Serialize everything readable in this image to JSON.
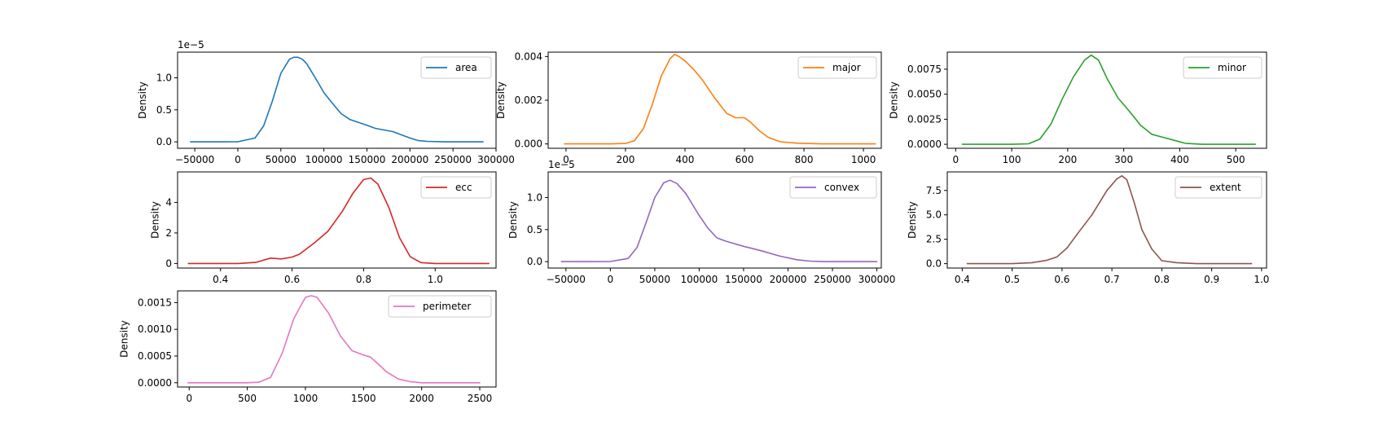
{
  "chart_data": [
    {
      "type": "line",
      "series": [
        {
          "name": "area",
          "color": "#1f77b4"
        }
      ],
      "ylabel": "Density",
      "offset_text": "1e−5",
      "xlim": [
        -70000,
        300000
      ],
      "ylim": [
        -0.1,
        1.4
      ],
      "xticks": [
        -50000,
        0,
        50000,
        100000,
        150000,
        200000,
        250000,
        300000
      ],
      "xtick_labels": [
        "−50000",
        "0",
        "50000",
        "100000",
        "150000",
        "200000",
        "250000",
        "300000"
      ],
      "yticks": [
        0,
        0.5,
        1.0
      ],
      "ytick_labels": [
        "0.0",
        "0.5",
        "1.0"
      ],
      "legend_position": "upper right",
      "x": [
        -55000,
        -20000,
        0,
        20000,
        30000,
        40000,
        50000,
        60000,
        65000,
        70000,
        75000,
        80000,
        90000,
        100000,
        110000,
        120000,
        130000,
        150000,
        160000,
        180000,
        190000,
        200000,
        210000,
        220000,
        240000,
        285000
      ],
      "y": [
        0,
        0,
        0.002,
        0.06,
        0.25,
        0.63,
        1.07,
        1.29,
        1.32,
        1.32,
        1.29,
        1.22,
        1.0,
        0.77,
        0.6,
        0.44,
        0.35,
        0.26,
        0.21,
        0.16,
        0.11,
        0.06,
        0.02,
        0.008,
        0,
        0
      ]
    },
    {
      "type": "line",
      "series": [
        {
          "name": "major",
          "color": "#ff7f0e"
        }
      ],
      "ylabel": "Density",
      "xlim": [
        -60,
        1060
      ],
      "ylim": [
        -0.0002,
        0.0042
      ],
      "xticks": [
        0,
        200,
        400,
        600,
        800,
        1000
      ],
      "xtick_labels": [
        "0",
        "200",
        "400",
        "600",
        "800",
        "1000"
      ],
      "yticks": [
        0,
        0.002,
        0.004
      ],
      "ytick_labels": [
        "0.000",
        "0.002",
        "0.004"
      ],
      "legend_position": "upper right",
      "x": [
        -5,
        150,
        200,
        230,
        260,
        290,
        320,
        350,
        365,
        380,
        400,
        430,
        460,
        500,
        540,
        570,
        600,
        620,
        650,
        680,
        720,
        780,
        860,
        1040
      ],
      "y": [
        0,
        0,
        2e-05,
        0.00015,
        0.0007,
        0.0018,
        0.0031,
        0.0039,
        0.0041,
        0.004,
        0.0038,
        0.0034,
        0.0029,
        0.0021,
        0.0014,
        0.0012,
        0.0012,
        0.001,
        0.0006,
        0.0003,
        0.0001,
        3e-05,
        0,
        0
      ]
    },
    {
      "type": "line",
      "series": [
        {
          "name": "minor",
          "color": "#2ca02c"
        }
      ],
      "ylabel": "Density",
      "xlim": [
        -15,
        555
      ],
      "ylim": [
        -0.0004,
        0.0092
      ],
      "xticks": [
        0,
        100,
        200,
        300,
        400,
        500
      ],
      "xtick_labels": [
        "0",
        "100",
        "200",
        "300",
        "400",
        "500"
      ],
      "yticks": [
        0,
        0.0025,
        0.005,
        0.0075
      ],
      "ytick_labels": [
        "0.0000",
        "0.0025",
        "0.0050",
        "0.0075"
      ],
      "legend_position": "upper right",
      "x": [
        12,
        100,
        130,
        150,
        170,
        190,
        210,
        230,
        242,
        255,
        270,
        290,
        310,
        330,
        350,
        370,
        390,
        410,
        440,
        535
      ],
      "y": [
        0,
        0,
        5e-05,
        0.0005,
        0.002,
        0.0045,
        0.0067,
        0.0084,
        0.0089,
        0.0084,
        0.0066,
        0.0046,
        0.0033,
        0.0019,
        0.001,
        0.0007,
        0.0004,
        0.0001,
        0,
        0
      ]
    },
    {
      "type": "line",
      "series": [
        {
          "name": "ecc",
          "color": "#d62728"
        }
      ],
      "ylabel": "Density",
      "xlim": [
        0.28,
        1.17
      ],
      "ylim": [
        -0.3,
        6.0
      ],
      "xticks": [
        0.4,
        0.6,
        0.8,
        1.0
      ],
      "xtick_labels": [
        "0.4",
        "0.6",
        "0.8",
        "1.0"
      ],
      "yticks": [
        0,
        2,
        4
      ],
      "ytick_labels": [
        "0",
        "2",
        "4"
      ],
      "legend_position": "upper right",
      "x": [
        0.31,
        0.45,
        0.5,
        0.54,
        0.57,
        0.6,
        0.62,
        0.66,
        0.7,
        0.74,
        0.77,
        0.8,
        0.82,
        0.84,
        0.87,
        0.9,
        0.93,
        0.96,
        1.0,
        1.15
      ],
      "y": [
        0,
        0,
        0.08,
        0.35,
        0.3,
        0.42,
        0.6,
        1.3,
        2.1,
        3.4,
        4.6,
        5.5,
        5.6,
        5.2,
        3.7,
        1.7,
        0.45,
        0.06,
        0,
        0
      ]
    },
    {
      "type": "line",
      "series": [
        {
          "name": "convex",
          "color": "#9467bd"
        }
      ],
      "ylabel": "Density",
      "offset_text": "1e−5",
      "xlim": [
        -70000,
        305000
      ],
      "ylim": [
        -0.1,
        1.4
      ],
      "xticks": [
        -50000,
        0,
        50000,
        100000,
        150000,
        200000,
        250000,
        300000
      ],
      "xtick_labels": [
        "−50000",
        "0",
        "50000",
        "100000",
        "150000",
        "200000",
        "250000",
        "300000"
      ],
      "yticks": [
        0,
        0.5,
        1.0
      ],
      "ytick_labels": [
        "0.0",
        "0.5",
        "1.0"
      ],
      "legend_position": "upper right",
      "x": [
        -55000,
        -20000,
        0,
        20000,
        30000,
        40000,
        50000,
        60000,
        67000,
        75000,
        85000,
        100000,
        110000,
        120000,
        130000,
        150000,
        170000,
        190000,
        210000,
        225000,
        240000,
        300000
      ],
      "y": [
        0,
        0,
        0.002,
        0.05,
        0.22,
        0.6,
        1.0,
        1.23,
        1.27,
        1.22,
        1.06,
        0.72,
        0.52,
        0.37,
        0.32,
        0.24,
        0.17,
        0.09,
        0.03,
        0.008,
        0,
        0
      ]
    },
    {
      "type": "line",
      "series": [
        {
          "name": "extent",
          "color": "#8c564b"
        }
      ],
      "ylabel": "Density",
      "xlim": [
        0.37,
        1.01
      ],
      "ylim": [
        -0.45,
        9.4
      ],
      "xticks": [
        0.4,
        0.5,
        0.6,
        0.7,
        0.8,
        0.9,
        1.0
      ],
      "xtick_labels": [
        "0.4",
        "0.5",
        "0.6",
        "0.7",
        "0.8",
        "0.9",
        "1.0"
      ],
      "yticks": [
        0,
        2.5,
        5.0,
        7.5
      ],
      "ytick_labels": [
        "0.0",
        "2.5",
        "5.0",
        "7.5"
      ],
      "legend_position": "upper right",
      "x": [
        0.41,
        0.5,
        0.54,
        0.57,
        0.59,
        0.61,
        0.63,
        0.66,
        0.69,
        0.71,
        0.72,
        0.73,
        0.745,
        0.76,
        0.78,
        0.8,
        0.83,
        0.87,
        0.98
      ],
      "y": [
        0,
        0,
        0.1,
        0.35,
        0.7,
        1.6,
        3.0,
        5.0,
        7.5,
        8.7,
        9.0,
        8.6,
        6.2,
        3.5,
        1.5,
        0.3,
        0.1,
        0,
        0
      ]
    },
    {
      "type": "line",
      "series": [
        {
          "name": "perimeter",
          "color": "#e377c2"
        }
      ],
      "ylabel": "Density",
      "xlim": [
        -100,
        2640
      ],
      "ylim": [
        -8e-05,
        0.00172
      ],
      "xticks": [
        0,
        500,
        1000,
        1500,
        2000,
        2500
      ],
      "xtick_labels": [
        "0",
        "500",
        "1000",
        "1500",
        "2000",
        "2500"
      ],
      "yticks": [
        0,
        0.0005,
        0.001,
        0.0015
      ],
      "ytick_labels": [
        "0.0000",
        "0.0005",
        "0.0010",
        "0.0015"
      ],
      "legend_position": "upper right",
      "x": [
        -10,
        500,
        600,
        700,
        800,
        900,
        1000,
        1050,
        1100,
        1200,
        1300,
        1400,
        1500,
        1560,
        1600,
        1700,
        1800,
        1900,
        2000,
        2500
      ],
      "y": [
        0,
        0,
        1e-05,
        0.0001,
        0.00055,
        0.0012,
        0.0016,
        0.00163,
        0.0016,
        0.0013,
        0.00088,
        0.0006,
        0.00052,
        0.00048,
        0.0004,
        0.0002,
        7e-05,
        2e-05,
        0,
        0
      ]
    }
  ]
}
